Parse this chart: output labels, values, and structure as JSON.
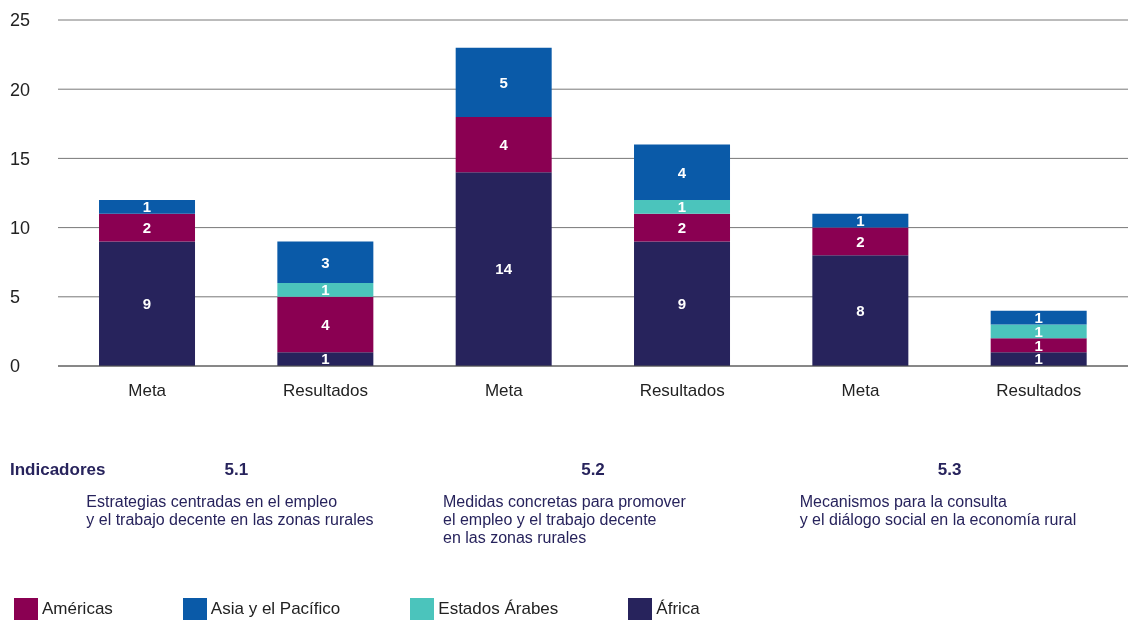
{
  "chart_data": {
    "type": "bar",
    "stacked": true,
    "categories": [
      "Meta",
      "Resultados",
      "Meta",
      "Resultados",
      "Meta",
      "Resultados"
    ],
    "series": [
      {
        "name": "África",
        "color": "#27235c",
        "values": [
          9,
          1,
          14,
          9,
          8,
          1
        ]
      },
      {
        "name": "Américas",
        "color": "#8a0052",
        "values": [
          2,
          4,
          4,
          2,
          2,
          1
        ]
      },
      {
        "name": "Estados Árabes",
        "color": "#4bc4bc",
        "values": [
          null,
          1,
          null,
          1,
          null,
          1
        ]
      },
      {
        "name": "Asia y el Pacífico",
        "color": "#0a5aa8",
        "values": [
          1,
          3,
          5,
          4,
          1,
          1
        ]
      }
    ],
    "ylim": [
      0,
      25
    ],
    "yticks": [
      0,
      5,
      10,
      15,
      20,
      25
    ],
    "grid": "y",
    "legend": "bottom",
    "data_labels": true,
    "annotations": [
      "Indicadores",
      "5.1",
      "Estrategias centradas en el empleo\ny el trabajo decente en las zonas rurales",
      "5.2",
      "Medidas concretas para promover\nel empleo y el trabajo decente\nen las zonas rurales",
      "5.3",
      "Mecanismos para la consulta\ny el diálogo social en la economía rural"
    ]
  }
}
